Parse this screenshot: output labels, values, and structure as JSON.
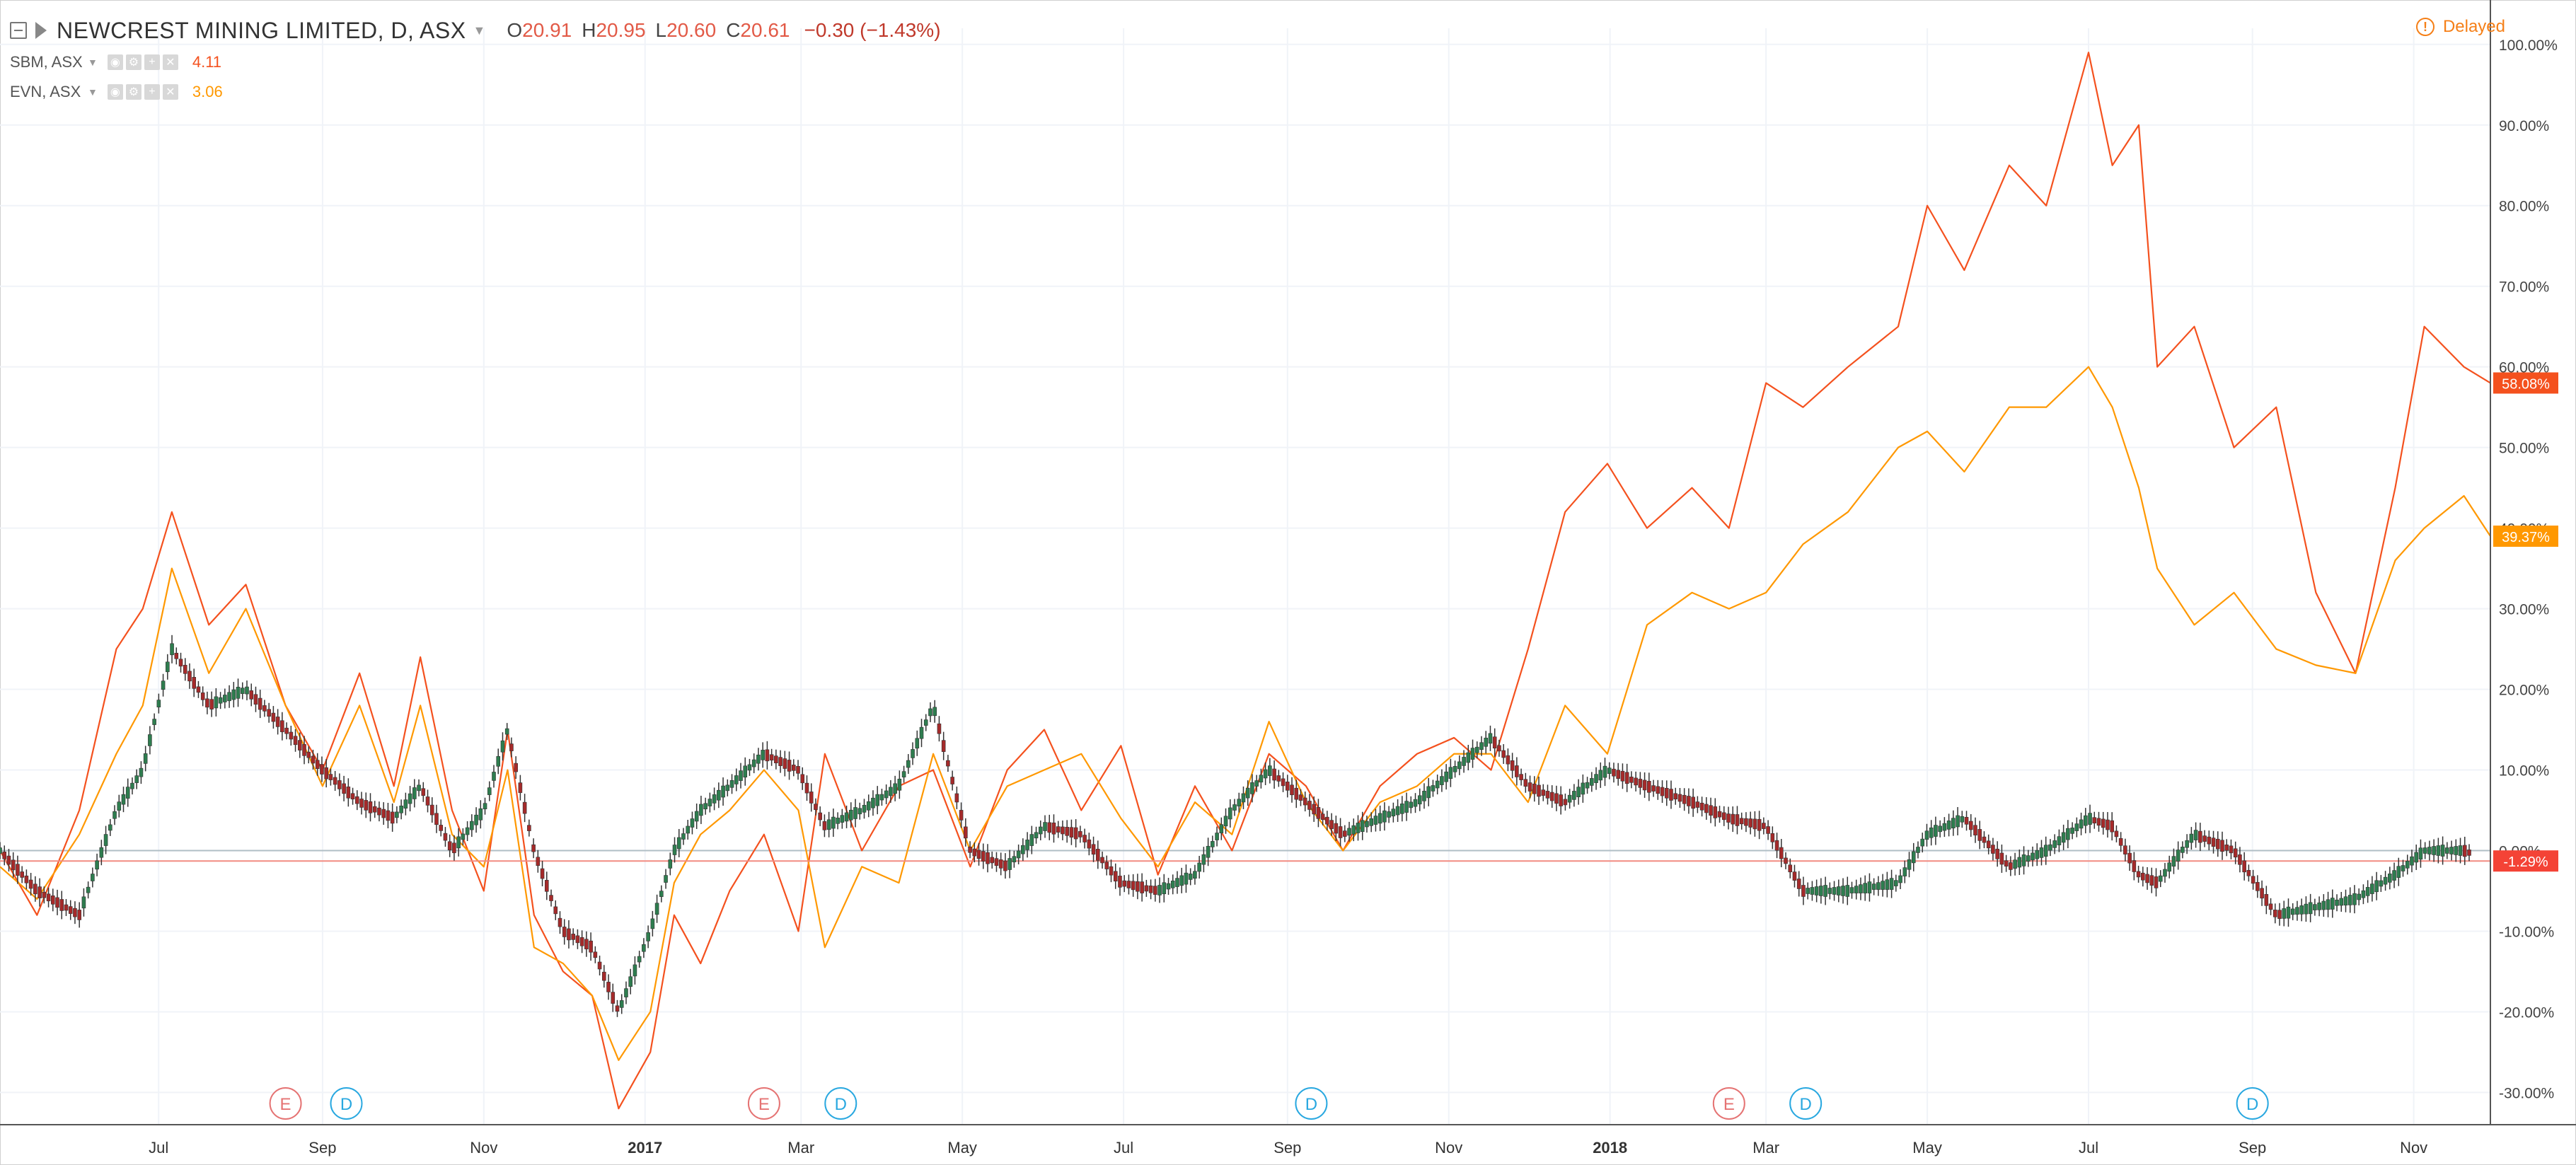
{
  "header": {
    "symbol": "NEWCREST MINING LIMITED, D, ASX",
    "open_label": "O",
    "open": "20.91",
    "high_label": "H",
    "high": "20.95",
    "low_label": "L",
    "low": "20.60",
    "close_label": "C",
    "close": "20.61",
    "change": "−0.30 (−1.43%)",
    "delayed": "Delayed"
  },
  "comparisons": [
    {
      "name": "SBM, ASX",
      "value": "4.11",
      "color": "#f4511e"
    },
    {
      "name": "EVN, ASX",
      "value": "3.06",
      "color": "#ff9800"
    }
  ],
  "colors": {
    "up": "#26a69a",
    "down": "#ef5350",
    "candle_up": "#2e7d4f",
    "candle_down": "#a52a2a",
    "grid": "#f0f3f8",
    "baseline": "#b0bec5",
    "close_line": "#f28b82",
    "earnings": "#e57373",
    "dividend": "#29a8e0"
  },
  "chart_data": {
    "type": "line",
    "title": "NEWCREST MINING LIMITED, D, ASX",
    "x_axis": {
      "type": "date",
      "range": [
        "2016-05-02",
        "2018-11-30"
      ],
      "tick_labels": [
        {
          "date": "2016-07-01",
          "label": "Jul"
        },
        {
          "date": "2016-09-01",
          "label": "Sep"
        },
        {
          "date": "2016-11-01",
          "label": "Nov"
        },
        {
          "date": "2017-01-01",
          "label": "2017",
          "bold": true
        },
        {
          "date": "2017-03-01",
          "label": "Mar"
        },
        {
          "date": "2017-05-01",
          "label": "May"
        },
        {
          "date": "2017-07-01",
          "label": "Jul"
        },
        {
          "date": "2017-09-01",
          "label": "Sep"
        },
        {
          "date": "2017-11-01",
          "label": "Nov"
        },
        {
          "date": "2018-01-01",
          "label": "2018",
          "bold": true
        },
        {
          "date": "2018-03-01",
          "label": "Mar"
        },
        {
          "date": "2018-05-01",
          "label": "May"
        },
        {
          "date": "2018-07-01",
          "label": "Jul"
        },
        {
          "date": "2018-09-01",
          "label": "Sep"
        },
        {
          "date": "2018-11-01",
          "label": "Nov"
        }
      ]
    },
    "y_axis": {
      "unit": "%",
      "ylim": [
        -34,
        102
      ],
      "ticks": [
        100,
        90,
        80,
        70,
        60,
        50,
        40,
        30,
        20,
        10,
        0,
        -10,
        -20,
        -30
      ],
      "tick_labels": [
        "100.00%",
        "90.00%",
        "80.00%",
        "70.00%",
        "60.00%",
        "50.00%",
        "40.00%",
        "30.00%",
        "20.00%",
        "10.00%",
        "0.00%",
        "-10.00%",
        "-20.00%",
        "-30.00%"
      ]
    },
    "grid": true,
    "series": [
      {
        "name": "SBM, ASX",
        "color": "#f4511e",
        "last_label": "58.08%",
        "points": [
          [
            "2016-05-02",
            0
          ],
          [
            "2016-05-16",
            -8
          ],
          [
            "2016-06-01",
            5
          ],
          [
            "2016-06-15",
            25
          ],
          [
            "2016-06-25",
            30
          ],
          [
            "2016-07-06",
            42
          ],
          [
            "2016-07-20",
            28
          ],
          [
            "2016-08-03",
            33
          ],
          [
            "2016-08-18",
            18
          ],
          [
            "2016-09-01",
            10
          ],
          [
            "2016-09-15",
            22
          ],
          [
            "2016-09-28",
            8
          ],
          [
            "2016-10-08",
            24
          ],
          [
            "2016-10-20",
            5
          ],
          [
            "2016-11-01",
            -5
          ],
          [
            "2016-11-10",
            15
          ],
          [
            "2016-11-20",
            -8
          ],
          [
            "2016-12-01",
            -15
          ],
          [
            "2016-12-12",
            -18
          ],
          [
            "2016-12-22",
            -32
          ],
          [
            "2017-01-03",
            -25
          ],
          [
            "2017-01-12",
            -8
          ],
          [
            "2017-01-22",
            -14
          ],
          [
            "2017-02-02",
            -5
          ],
          [
            "2017-02-15",
            2
          ],
          [
            "2017-02-28",
            -10
          ],
          [
            "2017-03-10",
            12
          ],
          [
            "2017-03-24",
            0
          ],
          [
            "2017-04-07",
            8
          ],
          [
            "2017-04-20",
            10
          ],
          [
            "2017-05-04",
            -2
          ],
          [
            "2017-05-18",
            10
          ],
          [
            "2017-06-01",
            15
          ],
          [
            "2017-06-15",
            5
          ],
          [
            "2017-06-30",
            13
          ],
          [
            "2017-07-14",
            -3
          ],
          [
            "2017-07-28",
            8
          ],
          [
            "2017-08-11",
            0
          ],
          [
            "2017-08-25",
            12
          ],
          [
            "2017-09-08",
            8
          ],
          [
            "2017-09-22",
            0
          ],
          [
            "2017-10-06",
            8
          ],
          [
            "2017-10-20",
            12
          ],
          [
            "2017-11-03",
            14
          ],
          [
            "2017-11-17",
            10
          ],
          [
            "2017-12-01",
            25
          ],
          [
            "2017-12-15",
            42
          ],
          [
            "2017-12-31",
            48
          ],
          [
            "2018-01-15",
            40
          ],
          [
            "2018-02-01",
            45
          ],
          [
            "2018-02-15",
            40
          ],
          [
            "2018-03-01",
            58
          ],
          [
            "2018-03-15",
            55
          ],
          [
            "2018-04-01",
            60
          ],
          [
            "2018-04-20",
            65
          ],
          [
            "2018-05-01",
            80
          ],
          [
            "2018-05-15",
            72
          ],
          [
            "2018-06-01",
            85
          ],
          [
            "2018-06-15",
            80
          ],
          [
            "2018-07-01",
            99
          ],
          [
            "2018-07-10",
            85
          ],
          [
            "2018-07-20",
            90
          ],
          [
            "2018-07-27",
            60
          ],
          [
            "2018-08-10",
            65
          ],
          [
            "2018-08-25",
            50
          ],
          [
            "2018-09-10",
            55
          ],
          [
            "2018-09-25",
            32
          ],
          [
            "2018-10-10",
            22
          ],
          [
            "2018-10-25",
            45
          ],
          [
            "2018-11-05",
            65
          ],
          [
            "2018-11-20",
            60
          ],
          [
            "2018-11-30",
            58
          ]
        ]
      },
      {
        "name": "EVN, ASX",
        "color": "#ff9800",
        "last_label": "39.37%",
        "points": [
          [
            "2016-05-02",
            -2
          ],
          [
            "2016-05-16",
            -6
          ],
          [
            "2016-06-01",
            2
          ],
          [
            "2016-06-15",
            12
          ],
          [
            "2016-06-25",
            18
          ],
          [
            "2016-07-06",
            35
          ],
          [
            "2016-07-20",
            22
          ],
          [
            "2016-08-03",
            30
          ],
          [
            "2016-08-18",
            18
          ],
          [
            "2016-09-01",
            8
          ],
          [
            "2016-09-15",
            18
          ],
          [
            "2016-09-28",
            6
          ],
          [
            "2016-10-08",
            18
          ],
          [
            "2016-10-20",
            2
          ],
          [
            "2016-11-01",
            -2
          ],
          [
            "2016-11-10",
            10
          ],
          [
            "2016-11-20",
            -12
          ],
          [
            "2016-12-01",
            -14
          ],
          [
            "2016-12-12",
            -18
          ],
          [
            "2016-12-22",
            -26
          ],
          [
            "2017-01-03",
            -20
          ],
          [
            "2017-01-12",
            -4
          ],
          [
            "2017-01-22",
            2
          ],
          [
            "2017-02-02",
            5
          ],
          [
            "2017-02-15",
            10
          ],
          [
            "2017-02-28",
            5
          ],
          [
            "2017-03-10",
            -12
          ],
          [
            "2017-03-24",
            -2
          ],
          [
            "2017-04-07",
            -4
          ],
          [
            "2017-04-20",
            12
          ],
          [
            "2017-05-04",
            0
          ],
          [
            "2017-05-18",
            8
          ],
          [
            "2017-06-01",
            10
          ],
          [
            "2017-06-15",
            12
          ],
          [
            "2017-06-30",
            4
          ],
          [
            "2017-07-14",
            -2
          ],
          [
            "2017-07-28",
            6
          ],
          [
            "2017-08-11",
            2
          ],
          [
            "2017-08-25",
            16
          ],
          [
            "2017-09-08",
            6
          ],
          [
            "2017-09-22",
            0
          ],
          [
            "2017-10-06",
            6
          ],
          [
            "2017-10-20",
            8
          ],
          [
            "2017-11-03",
            12
          ],
          [
            "2017-11-17",
            12
          ],
          [
            "2017-12-01",
            6
          ],
          [
            "2017-12-15",
            18
          ],
          [
            "2017-12-31",
            12
          ],
          [
            "2018-01-15",
            28
          ],
          [
            "2018-02-01",
            32
          ],
          [
            "2018-02-15",
            30
          ],
          [
            "2018-03-01",
            32
          ],
          [
            "2018-03-15",
            38
          ],
          [
            "2018-04-01",
            42
          ],
          [
            "2018-04-20",
            50
          ],
          [
            "2018-05-01",
            52
          ],
          [
            "2018-05-15",
            47
          ],
          [
            "2018-06-01",
            55
          ],
          [
            "2018-06-15",
            55
          ],
          [
            "2018-07-01",
            60
          ],
          [
            "2018-07-10",
            55
          ],
          [
            "2018-07-20",
            45
          ],
          [
            "2018-07-27",
            35
          ],
          [
            "2018-08-10",
            28
          ],
          [
            "2018-08-25",
            32
          ],
          [
            "2018-09-10",
            25
          ],
          [
            "2018-09-25",
            23
          ],
          [
            "2018-10-10",
            22
          ],
          [
            "2018-10-25",
            36
          ],
          [
            "2018-11-05",
            40
          ],
          [
            "2018-11-20",
            44
          ],
          [
            "2018-11-30",
            39
          ]
        ]
      },
      {
        "name": "NEWCREST MINING LIMITED, D, ASX",
        "style": "candle",
        "color": "#2e7d4f",
        "last_label": "-1.29%",
        "points": [
          [
            "2016-05-02",
            0
          ],
          [
            "2016-05-16",
            -5
          ],
          [
            "2016-06-01",
            -8
          ],
          [
            "2016-06-15",
            5
          ],
          [
            "2016-06-25",
            10
          ],
          [
            "2016-07-06",
            25
          ],
          [
            "2016-07-20",
            18
          ],
          [
            "2016-08-03",
            20
          ],
          [
            "2016-08-18",
            15
          ],
          [
            "2016-09-01",
            10
          ],
          [
            "2016-09-15",
            6
          ],
          [
            "2016-09-28",
            4
          ],
          [
            "2016-10-08",
            8
          ],
          [
            "2016-10-20",
            0
          ],
          [
            "2016-11-01",
            5
          ],
          [
            "2016-11-10",
            15
          ],
          [
            "2016-11-20",
            0
          ],
          [
            "2016-12-01",
            -10
          ],
          [
            "2016-12-12",
            -12
          ],
          [
            "2016-12-22",
            -20
          ],
          [
            "2017-01-03",
            -10
          ],
          [
            "2017-01-12",
            0
          ],
          [
            "2017-01-22",
            5
          ],
          [
            "2017-02-02",
            8
          ],
          [
            "2017-02-15",
            12
          ],
          [
            "2017-02-28",
            10
          ],
          [
            "2017-03-10",
            3
          ],
          [
            "2017-03-24",
            5
          ],
          [
            "2017-04-07",
            8
          ],
          [
            "2017-04-20",
            18
          ],
          [
            "2017-05-04",
            0
          ],
          [
            "2017-05-18",
            -2
          ],
          [
            "2017-06-01",
            3
          ],
          [
            "2017-06-15",
            2
          ],
          [
            "2017-06-30",
            -4
          ],
          [
            "2017-07-14",
            -5
          ],
          [
            "2017-07-28",
            -3
          ],
          [
            "2017-08-11",
            5
          ],
          [
            "2017-08-25",
            10
          ],
          [
            "2017-09-08",
            6
          ],
          [
            "2017-09-22",
            2
          ],
          [
            "2017-10-06",
            4
          ],
          [
            "2017-10-20",
            6
          ],
          [
            "2017-11-03",
            10
          ],
          [
            "2017-11-17",
            14
          ],
          [
            "2017-12-01",
            8
          ],
          [
            "2017-12-15",
            6
          ],
          [
            "2017-12-31",
            10
          ],
          [
            "2018-01-15",
            8
          ],
          [
            "2018-02-01",
            6
          ],
          [
            "2018-02-15",
            4
          ],
          [
            "2018-03-01",
            3
          ],
          [
            "2018-03-15",
            -5
          ],
          [
            "2018-04-01",
            -5
          ],
          [
            "2018-04-20",
            -4
          ],
          [
            "2018-05-01",
            2
          ],
          [
            "2018-05-15",
            4
          ],
          [
            "2018-06-01",
            -2
          ],
          [
            "2018-06-15",
            0
          ],
          [
            "2018-07-01",
            4
          ],
          [
            "2018-07-10",
            3
          ],
          [
            "2018-07-20",
            -3
          ],
          [
            "2018-07-27",
            -4
          ],
          [
            "2018-08-10",
            2
          ],
          [
            "2018-08-25",
            0
          ],
          [
            "2018-09-10",
            -8
          ],
          [
            "2018-09-25",
            -7
          ],
          [
            "2018-10-10",
            -6
          ],
          [
            "2018-10-25",
            -3
          ],
          [
            "2018-11-05",
            0
          ],
          [
            "2018-11-20",
            0
          ],
          [
            "2018-11-30",
            -1.29
          ]
        ]
      }
    ],
    "events": [
      {
        "type": "E",
        "date": "2016-08-18"
      },
      {
        "type": "D",
        "date": "2016-09-10"
      },
      {
        "type": "E",
        "date": "2017-02-15"
      },
      {
        "type": "D",
        "date": "2017-03-16"
      },
      {
        "type": "D",
        "date": "2017-09-10"
      },
      {
        "type": "E",
        "date": "2018-02-15"
      },
      {
        "type": "D",
        "date": "2018-03-16"
      },
      {
        "type": "D",
        "date": "2018-09-01"
      }
    ],
    "legend": "top-left"
  }
}
